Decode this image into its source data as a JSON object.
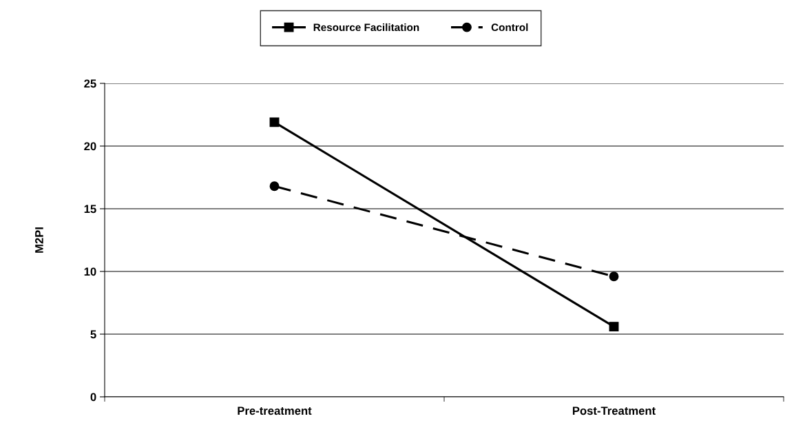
{
  "chart_data": {
    "type": "line",
    "ylabel": "M2PI",
    "categories": [
      "Pre-treatment",
      "Post-Treatment"
    ],
    "series": [
      {
        "name": "Resource Facilitation",
        "color": "#000000",
        "values": [
          21.9,
          5.6
        ],
        "marker": "square",
        "line_style": "solid"
      },
      {
        "name": "Control",
        "color": "#000000",
        "values": [
          16.8,
          9.6
        ],
        "marker": "circle",
        "line_style": "dashed"
      }
    ],
    "ylim": [
      0,
      25
    ],
    "yticks": [
      0,
      5,
      10,
      15,
      20,
      25
    ],
    "grid": "y",
    "legend": "top"
  }
}
